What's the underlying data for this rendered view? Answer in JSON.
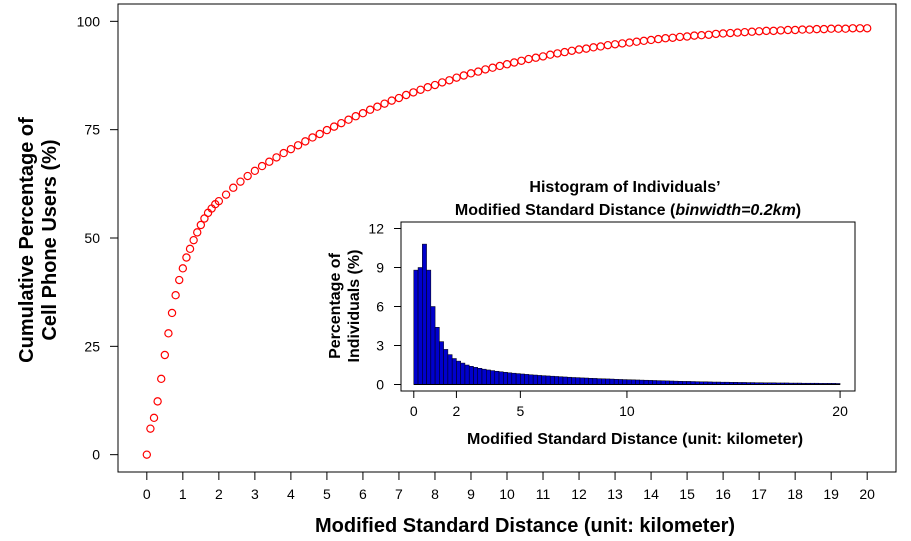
{
  "chart_data": [
    {
      "type": "scatter",
      "title": "",
      "xlabel": "Modified Standard Distance (unit: kilometer)",
      "ylabel_lines": [
        "Cumulative Percentage of",
        "Cell Phone Users (%)"
      ],
      "xlim": [
        -0.8,
        20.8
      ],
      "ylim": [
        -4,
        104
      ],
      "x_ticks": [
        0,
        1,
        2,
        3,
        4,
        5,
        6,
        7,
        8,
        9,
        10,
        11,
        12,
        13,
        14,
        15,
        16,
        17,
        18,
        19,
        20
      ],
      "y_ticks": [
        0,
        25,
        50,
        75,
        100
      ],
      "marker": "open-circle",
      "color": "#ff0000",
      "grid": false,
      "series": [
        {
          "x": [
            0,
            0.1,
            0.2,
            0.3,
            0.4,
            0.5,
            0.6,
            0.7,
            0.8,
            0.9,
            1,
            1.1,
            1.2,
            1.3,
            1.4,
            1.5,
            1.6,
            1.7,
            1.8,
            1.9,
            2,
            2.2,
            2.4,
            2.6,
            2.8,
            3,
            3.2,
            3.4,
            3.6,
            3.8,
            4,
            4.2,
            4.4,
            4.6,
            4.8,
            5,
            5.2,
            5.4,
            5.6,
            5.8,
            6,
            6.2,
            6.4,
            6.6,
            6.8,
            7,
            7.2,
            7.4,
            7.6,
            7.8,
            8,
            8.2,
            8.4,
            8.6,
            8.8,
            9,
            9.2,
            9.4,
            9.6,
            9.8,
            10,
            10.2,
            10.4,
            10.6,
            10.8,
            11,
            11.2,
            11.4,
            11.6,
            11.8,
            12,
            12.2,
            12.4,
            12.6,
            12.8,
            13,
            13.2,
            13.4,
            13.6,
            13.8,
            14,
            14.2,
            14.4,
            14.6,
            14.8,
            15,
            15.2,
            15.4,
            15.6,
            15.8,
            16,
            16.2,
            16.4,
            16.6,
            16.8,
            17,
            17.2,
            17.4,
            17.6,
            17.8,
            18,
            18.2,
            18.4,
            18.6,
            18.8,
            19,
            19.2,
            19.4,
            19.6,
            19.8,
            20
          ],
          "y": [
            0,
            6,
            8.5,
            12.3,
            17.5,
            23,
            28,
            32.7,
            36.8,
            40.3,
            43,
            45.5,
            47.5,
            49.5,
            51.3,
            53,
            54.5,
            55.8,
            56.8,
            57.8,
            58.5,
            60,
            61.6,
            63,
            64.3,
            65.5,
            66.6,
            67.6,
            68.6,
            69.6,
            70.5,
            71.4,
            72.3,
            73.2,
            74,
            74.9,
            75.7,
            76.5,
            77.3,
            78.1,
            78.8,
            79.6,
            80.3,
            81,
            81.7,
            82.3,
            83,
            83.6,
            84.2,
            84.8,
            85.3,
            85.9,
            86.4,
            87,
            87.5,
            88,
            88.4,
            88.9,
            89.3,
            89.7,
            90.1,
            90.5,
            90.9,
            91.3,
            91.6,
            91.9,
            92.3,
            92.6,
            92.9,
            93.2,
            93.5,
            93.7,
            94,
            94.2,
            94.5,
            94.7,
            94.9,
            95.1,
            95.3,
            95.5,
            95.7,
            95.9,
            96.1,
            96.2,
            96.4,
            96.5,
            96.7,
            96.8,
            96.9,
            97.1,
            97.2,
            97.3,
            97.4,
            97.5,
            97.6,
            97.7,
            97.8,
            97.8,
            97.9,
            98,
            98,
            98.1,
            98.1,
            98.2,
            98.2,
            98.3,
            98.3,
            98.3,
            98.4,
            98.4,
            98.4
          ]
        }
      ]
    },
    {
      "type": "bar",
      "title_line1": "Histogram of Individuals’",
      "title_line2_prefix": "Modified Standard Distance (",
      "title_line2_italic": "binwidth=0.2km",
      "title_line2_suffix": ")",
      "xlabel": "Modified Standard Distance (unit: kilometer)",
      "ylabel_lines": [
        "Percentage of",
        "Individuals (%)"
      ],
      "bin_width": 0.2,
      "bin_start": 0,
      "xlim": [
        -0.6,
        20.7
      ],
      "ylim": [
        -0.5,
        12.5
      ],
      "x_ticks": [
        0,
        2,
        5,
        10,
        20
      ],
      "y_ticks": [
        0,
        3,
        6,
        9,
        12
      ],
      "bar_color": "#0000cc",
      "edge_color": "#000000",
      "grid": false,
      "values": [
        8.8,
        9.0,
        10.8,
        8.8,
        6.0,
        4.4,
        3.3,
        2.7,
        2.3,
        2.0,
        1.8,
        1.65,
        1.5,
        1.4,
        1.32,
        1.25,
        1.18,
        1.12,
        1.07,
        1.02,
        0.98,
        0.94,
        0.9,
        0.87,
        0.84,
        0.81,
        0.78,
        0.75,
        0.73,
        0.7,
        0.68,
        0.66,
        0.64,
        0.62,
        0.6,
        0.58,
        0.56,
        0.54,
        0.53,
        0.51,
        0.5,
        0.48,
        0.47,
        0.45,
        0.44,
        0.43,
        0.42,
        0.4,
        0.39,
        0.38,
        0.37,
        0.36,
        0.35,
        0.34,
        0.33,
        0.32,
        0.31,
        0.3,
        0.29,
        0.28,
        0.27,
        0.26,
        0.25,
        0.24,
        0.24,
        0.23,
        0.22,
        0.21,
        0.21,
        0.2,
        0.19,
        0.19,
        0.18,
        0.18,
        0.17,
        0.17,
        0.16,
        0.16,
        0.15,
        0.15,
        0.14,
        0.14,
        0.13,
        0.13,
        0.13,
        0.12,
        0.12,
        0.12,
        0.11,
        0.11,
        0.11,
        0.1,
        0.1,
        0.1,
        0.1,
        0.09,
        0.09,
        0.09,
        0.09,
        0.08
      ]
    }
  ]
}
